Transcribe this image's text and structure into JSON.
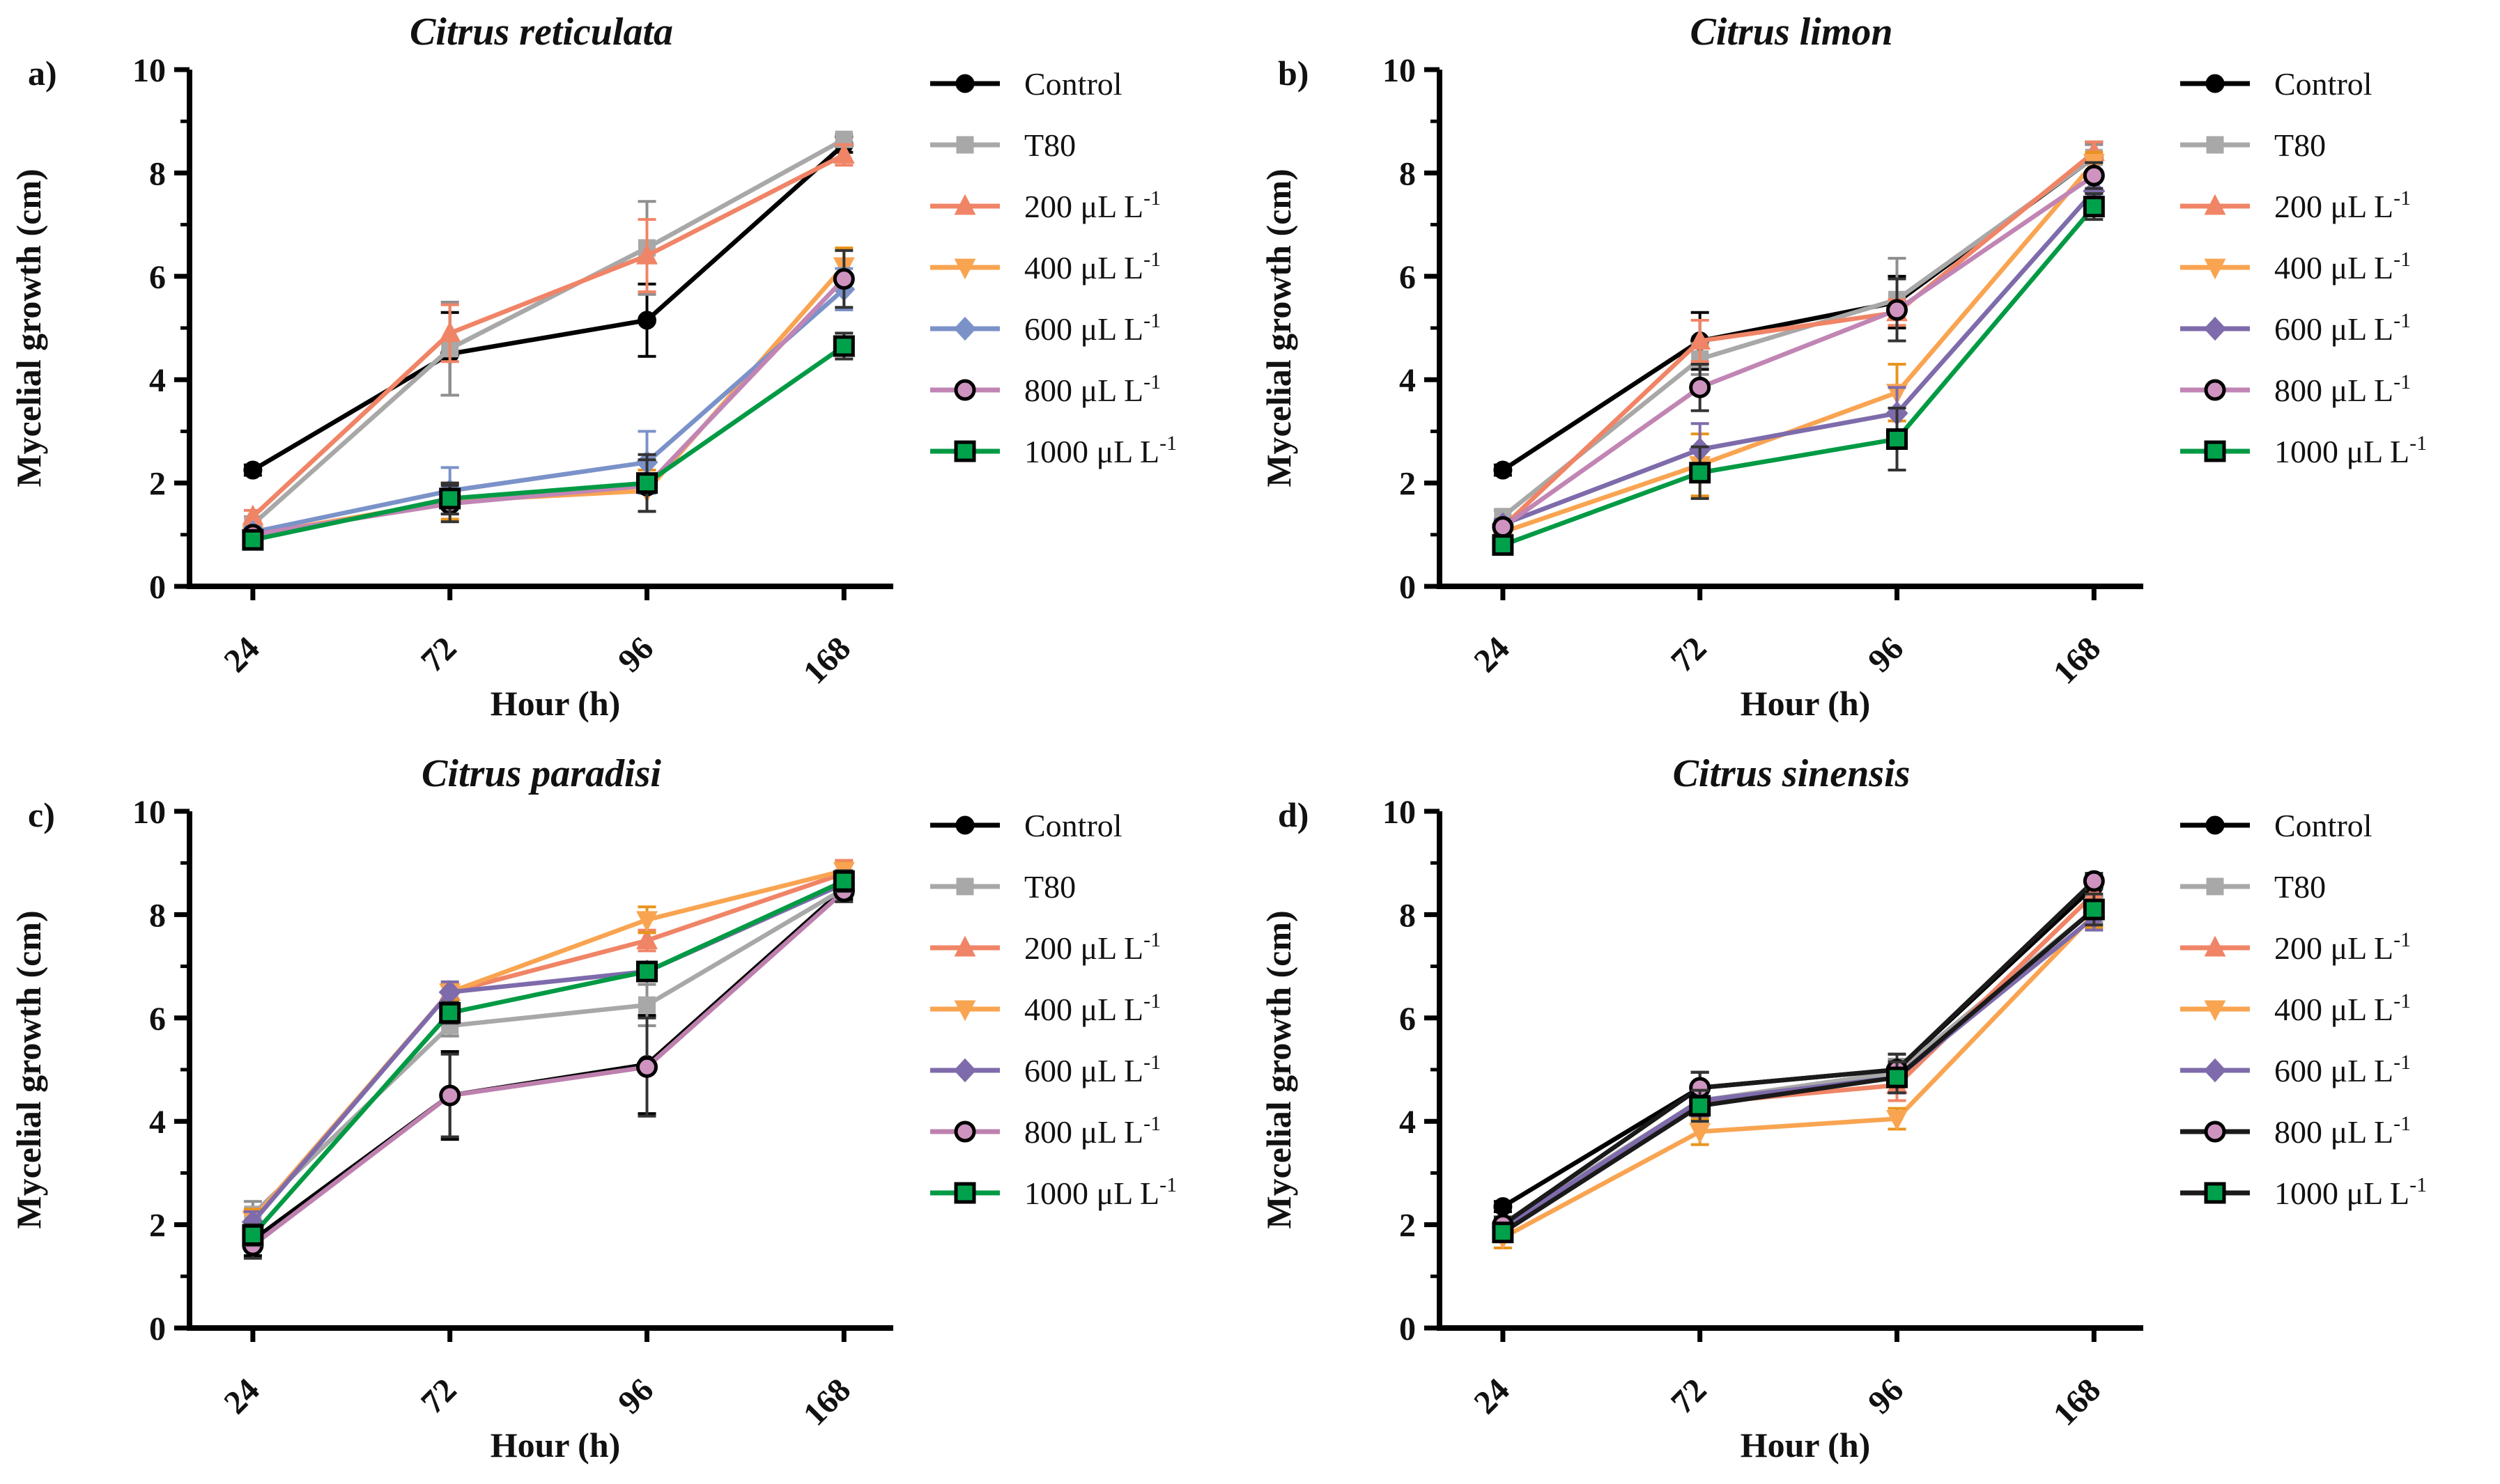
{
  "figure": {
    "background": "#ffffff",
    "axis_color": "#000000",
    "ylabel": "Mycelial growth (cm)",
    "xlabel": "Hour (h)"
  },
  "chart_data": [
    {
      "id": "a",
      "panel_label": "a)",
      "type": "line",
      "title": "Citrus reticulata",
      "xlabel": "Hour (h)",
      "ylabel": "Mycelial growth (cm)",
      "ylim": [
        0,
        10
      ],
      "yticks": [
        0,
        2,
        4,
        6,
        8,
        10
      ],
      "minor_yticks": [
        1,
        3,
        5,
        7,
        9
      ],
      "categories": [
        "24",
        "72",
        "96",
        "168"
      ],
      "grid": false,
      "legend_position": "right",
      "series": [
        {
          "name": {
            "text": "Control",
            "sup": ""
          },
          "marker": "circle",
          "color": "#000000",
          "marker_fill": "#000000",
          "marker_edge": "#000000",
          "err_color": "#000000",
          "values": [
            2.25,
            4.5,
            5.15,
            8.55
          ],
          "errors": [
            0.1,
            0.8,
            0.7,
            0.15
          ]
        },
        {
          "name": {
            "text": "T80",
            "sup": ""
          },
          "marker": "square",
          "color": "#a8a8a8",
          "marker_fill": "#a8a8a8",
          "marker_edge": "#a8a8a8",
          "err_color": "#8f8f8f",
          "values": [
            1.2,
            4.6,
            6.55,
            8.65
          ],
          "errors": [
            0.15,
            0.9,
            0.9,
            0.1
          ]
        },
        {
          "name": {
            "text": "200 μL L",
            "sup": "-1"
          },
          "marker": "triangle-up",
          "color": "#f08466",
          "marker_fill": "#f08466",
          "marker_edge": "#f08466",
          "err_color": "#f08466",
          "values": [
            1.35,
            4.9,
            6.4,
            8.35
          ],
          "errors": [
            0.12,
            0.55,
            0.7,
            0.2
          ]
        },
        {
          "name": {
            "text": "400 μL L",
            "sup": "-1"
          },
          "marker": "triangle-down",
          "color": "#f9a451",
          "marker_fill": "#f9a451",
          "marker_edge": "#f9a451",
          "err_color": "#e8941d",
          "values": [
            1.0,
            1.65,
            1.85,
            6.2
          ],
          "errors": [
            0.1,
            0.35,
            0.4,
            0.35
          ]
        },
        {
          "name": {
            "text": "600 μL L",
            "sup": "-1"
          },
          "marker": "diamond",
          "color": "#7b92c9",
          "marker_fill": "#7b92c9",
          "marker_edge": "#7b92c9",
          "err_color": "#7b92c9",
          "values": [
            1.05,
            1.85,
            2.4,
            5.75
          ],
          "errors": [
            0.1,
            0.45,
            0.6,
            0.4
          ]
        },
        {
          "name": {
            "text": "800 μL L",
            "sup": "-1"
          },
          "marker": "circle-open",
          "color": "#c185b4",
          "marker_fill": "#cf93c0",
          "marker_edge": "#000000",
          "err_color": "#333333",
          "values": [
            1.0,
            1.6,
            1.95,
            5.95
          ],
          "errors": [
            0.1,
            0.35,
            0.5,
            0.55
          ]
        },
        {
          "name": {
            "text": "1000 μL L",
            "sup": "-1"
          },
          "marker": "square-open",
          "color": "#009a44",
          "marker_fill": "#00a14b",
          "marker_edge": "#000000",
          "err_color": "#333333",
          "values": [
            0.9,
            1.7,
            2.0,
            4.65
          ],
          "errors": [
            0.08,
            0.3,
            0.55,
            0.25
          ]
        }
      ]
    },
    {
      "id": "b",
      "panel_label": "b)",
      "type": "line",
      "title": "Citrus limon",
      "xlabel": "Hour (h)",
      "ylabel": "Mycelial growth (cm)",
      "ylim": [
        0,
        10
      ],
      "yticks": [
        0,
        2,
        4,
        6,
        8,
        10
      ],
      "minor_yticks": [
        1,
        3,
        5,
        7,
        9
      ],
      "categories": [
        "24",
        "72",
        "96",
        "168"
      ],
      "grid": false,
      "legend_position": "right",
      "series": [
        {
          "name": {
            "text": "Control",
            "sup": ""
          },
          "marker": "circle",
          "color": "#000000",
          "marker_fill": "#000000",
          "marker_edge": "#000000",
          "err_color": "#000000",
          "values": [
            2.25,
            4.75,
            5.5,
            8.3
          ],
          "errors": [
            0.1,
            0.55,
            0.5,
            0.3
          ]
        },
        {
          "name": {
            "text": "T80",
            "sup": ""
          },
          "marker": "square",
          "color": "#a8a8a8",
          "marker_fill": "#a8a8a8",
          "marker_edge": "#a8a8a8",
          "err_color": "#8f8f8f",
          "values": [
            1.35,
            4.4,
            5.55,
            8.3
          ],
          "errors": [
            0.12,
            0.3,
            0.8,
            0.25
          ]
        },
        {
          "name": {
            "text": "200 μL L",
            "sup": "-1"
          },
          "marker": "triangle-up",
          "color": "#f08466",
          "marker_fill": "#f08466",
          "marker_edge": "#f08466",
          "err_color": "#f08466",
          "values": [
            1.15,
            4.75,
            5.3,
            8.4
          ],
          "errors": [
            0.1,
            0.4,
            0.25,
            0.2
          ]
        },
        {
          "name": {
            "text": "400 μL L",
            "sup": "-1"
          },
          "marker": "triangle-down",
          "color": "#f9a451",
          "marker_fill": "#f9a451",
          "marker_edge": "#f9a451",
          "err_color": "#e8941d",
          "values": [
            1.05,
            2.35,
            3.75,
            8.2
          ],
          "errors": [
            0.1,
            0.6,
            0.55,
            0.2
          ]
        },
        {
          "name": {
            "text": "600 μL L",
            "sup": "-1"
          },
          "marker": "diamond",
          "color": "#7e6bab",
          "marker_fill": "#7e6bab",
          "marker_edge": "#7e6bab",
          "err_color": "#7e6bab",
          "values": [
            1.2,
            2.65,
            3.35,
            7.65
          ],
          "errors": [
            0.1,
            0.5,
            0.5,
            0.25
          ]
        },
        {
          "name": {
            "text": "800 μL L",
            "sup": "-1"
          },
          "marker": "circle-open",
          "color": "#c185b4",
          "marker_fill": "#cf93c0",
          "marker_edge": "#000000",
          "err_color": "#333333",
          "values": [
            1.15,
            3.85,
            5.35,
            7.95
          ],
          "errors": [
            0.1,
            0.45,
            0.6,
            0.25
          ]
        },
        {
          "name": {
            "text": "1000 μL L",
            "sup": "-1"
          },
          "marker": "square-open",
          "color": "#009a44",
          "marker_fill": "#00a14b",
          "marker_edge": "#000000",
          "err_color": "#333333",
          "values": [
            0.8,
            2.2,
            2.85,
            7.35
          ],
          "errors": [
            0.1,
            0.5,
            0.6,
            0.25
          ]
        }
      ]
    },
    {
      "id": "c",
      "panel_label": "c)",
      "type": "line",
      "title": "Citrus paradisi",
      "xlabel": "Hour (h)",
      "ylabel": "Mycelial growth (cm)",
      "ylim": [
        0,
        10
      ],
      "yticks": [
        0,
        2,
        4,
        6,
        8,
        10
      ],
      "minor_yticks": [
        1,
        3,
        5,
        7,
        9
      ],
      "categories": [
        "24",
        "72",
        "96",
        "168"
      ],
      "grid": false,
      "legend_position": "right",
      "series": [
        {
          "name": {
            "text": "Control",
            "sup": ""
          },
          "marker": "circle",
          "color": "#000000",
          "marker_fill": "#000000",
          "marker_edge": "#000000",
          "err_color": "#000000",
          "values": [
            1.7,
            4.5,
            5.1,
            8.5
          ],
          "errors": [
            0.3,
            0.85,
            0.95,
            0.2
          ]
        },
        {
          "name": {
            "text": "T80",
            "sup": ""
          },
          "marker": "square",
          "color": "#a8a8a8",
          "marker_fill": "#a8a8a8",
          "marker_edge": "#a8a8a8",
          "err_color": "#8f8f8f",
          "values": [
            2.2,
            5.85,
            6.25,
            8.5
          ],
          "errors": [
            0.25,
            0.2,
            0.4,
            0.15
          ]
        },
        {
          "name": {
            "text": "200 μL L",
            "sup": "-1"
          },
          "marker": "triangle-up",
          "color": "#f08466",
          "marker_fill": "#f08466",
          "marker_edge": "#f08466",
          "err_color": "#f08466",
          "values": [
            2.1,
            6.5,
            7.5,
            8.8
          ],
          "errors": [
            0.2,
            0.15,
            0.2,
            0.25
          ]
        },
        {
          "name": {
            "text": "400 μL L",
            "sup": "-1"
          },
          "marker": "triangle-down",
          "color": "#f9a451",
          "marker_fill": "#f9a451",
          "marker_edge": "#f9a451",
          "err_color": "#e8941d",
          "values": [
            2.1,
            6.5,
            7.9,
            8.85
          ],
          "errors": [
            0.2,
            0.15,
            0.25,
            0.15
          ]
        },
        {
          "name": {
            "text": "600 μL L",
            "sup": "-1"
          },
          "marker": "diamond",
          "color": "#7e6bab",
          "marker_fill": "#7e6bab",
          "marker_edge": "#7e6bab",
          "err_color": "#7e6bab",
          "values": [
            2.05,
            6.5,
            6.9,
            8.6
          ],
          "errors": [
            0.2,
            0.2,
            0.15,
            0.15
          ]
        },
        {
          "name": {
            "text": "800 μL L",
            "sup": "-1"
          },
          "marker": "circle-open",
          "color": "#bd80ae",
          "marker_fill": "#cf93c0",
          "marker_edge": "#000000",
          "err_color": "#333333",
          "values": [
            1.6,
            4.5,
            5.05,
            8.45
          ],
          "errors": [
            0.25,
            0.8,
            0.95,
            0.2
          ]
        },
        {
          "name": {
            "text": "1000 μL L",
            "sup": "-1"
          },
          "marker": "square-open",
          "color": "#009a44",
          "marker_fill": "#00a14b",
          "marker_edge": "#000000",
          "err_color": "#333333",
          "values": [
            1.8,
            6.1,
            6.9,
            8.65
          ],
          "errors": [
            0.2,
            0.2,
            0.15,
            0.2
          ]
        }
      ]
    },
    {
      "id": "d",
      "panel_label": "d)",
      "type": "line",
      "title": "Citrus sinensis",
      "xlabel": "Hour (h)",
      "ylabel": "Mycelial growth (cm)",
      "ylim": [
        0,
        10
      ],
      "yticks": [
        0,
        2,
        4,
        6,
        8,
        10
      ],
      "minor_yticks": [
        1,
        3,
        5,
        7,
        9
      ],
      "categories": [
        "24",
        "72",
        "96",
        "168"
      ],
      "grid": false,
      "legend_position": "right",
      "series": [
        {
          "name": {
            "text": "Control",
            "sup": ""
          },
          "marker": "circle",
          "color": "#000000",
          "marker_fill": "#000000",
          "marker_edge": "#000000",
          "err_color": "#000000",
          "values": [
            2.35,
            4.65,
            5.0,
            8.55
          ],
          "errors": [
            0.1,
            0.3,
            0.3,
            0.2
          ]
        },
        {
          "name": {
            "text": "T80",
            "sup": ""
          },
          "marker": "square",
          "color": "#a8a8a8",
          "marker_fill": "#a8a8a8",
          "marker_edge": "#a8a8a8",
          "err_color": "#8f8f8f",
          "values": [
            2.0,
            4.4,
            4.95,
            8.1
          ],
          "errors": [
            0.15,
            0.25,
            0.25,
            0.25
          ]
        },
        {
          "name": {
            "text": "200 μL L",
            "sup": "-1"
          },
          "marker": "triangle-up",
          "color": "#f08466",
          "marker_fill": "#f08466",
          "marker_edge": "#f08466",
          "err_color": "#f08466",
          "values": [
            1.9,
            4.35,
            4.7,
            8.4
          ],
          "errors": [
            0.2,
            0.3,
            0.3,
            0.2
          ]
        },
        {
          "name": {
            "text": "400 μL L",
            "sup": "-1"
          },
          "marker": "triangle-down",
          "color": "#f9a451",
          "marker_fill": "#f9a451",
          "marker_edge": "#f9a451",
          "err_color": "#e8941d",
          "values": [
            1.75,
            3.8,
            4.05,
            8.0
          ],
          "errors": [
            0.2,
            0.25,
            0.2,
            0.25
          ]
        },
        {
          "name": {
            "text": "600 μL L",
            "sup": "-1"
          },
          "marker": "diamond",
          "color": "#7e6bab",
          "marker_fill": "#7e6bab",
          "marker_edge": "#7e6bab",
          "err_color": "#7e6bab",
          "values": [
            1.95,
            4.4,
            4.85,
            7.95
          ],
          "errors": [
            0.15,
            0.3,
            0.3,
            0.25
          ]
        },
        {
          "name": {
            "text": "800 μL L",
            "sup": "-1"
          },
          "marker": "circle-open",
          "color": "#1a1a1a",
          "marker_fill": "#cf93c0",
          "marker_edge": "#000000",
          "err_color": "#333333",
          "values": [
            2.0,
            4.65,
            5.0,
            8.65
          ],
          "errors": [
            0.15,
            0.3,
            0.3,
            0.15
          ]
        },
        {
          "name": {
            "text": "1000 μL L",
            "sup": "-1"
          },
          "marker": "square-open",
          "color": "#1a1a1a",
          "marker_fill": "#00a14b",
          "marker_edge": "#000000",
          "err_color": "#333333",
          "values": [
            1.85,
            4.3,
            4.85,
            8.1
          ],
          "errors": [
            0.15,
            0.3,
            0.3,
            0.3
          ]
        }
      ]
    }
  ]
}
